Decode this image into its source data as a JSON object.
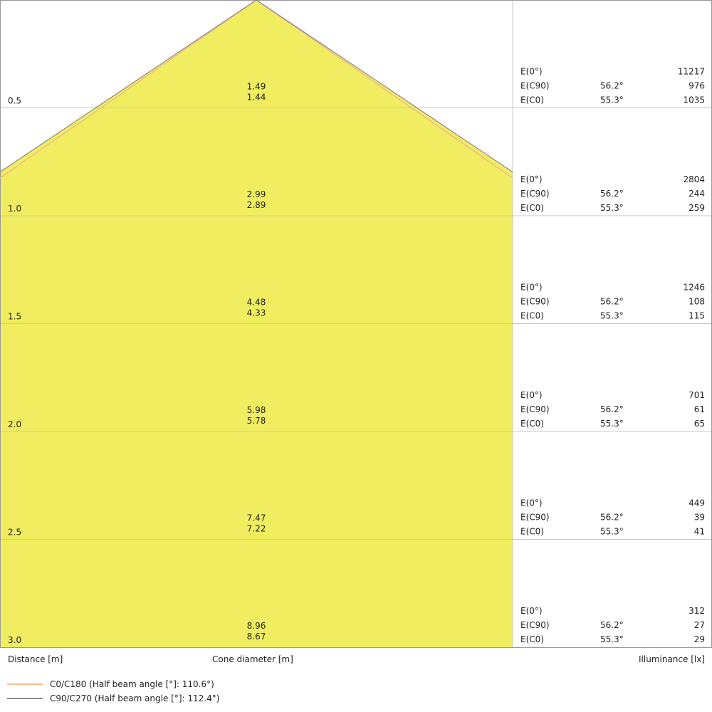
{
  "chart_data": {
    "type": "cone-diagram",
    "fill_color": "#f0ee60",
    "xlabel": "Cone diameter [m]",
    "ylabel": "Distance [m]",
    "right_label": "Illuminance [lx]",
    "series": [
      {
        "name": "C0/C180 (Half beam angle [°]: 110.6°)",
        "color": "#f5b98c",
        "half_beam_angle": 110.6
      },
      {
        "name": "C90/C270 (Half beam angle [°]: 112.4°)",
        "color": "#8a8a8a",
        "half_beam_angle": 112.4
      }
    ],
    "rows": [
      {
        "distance": "0.5",
        "d1": "1.49",
        "d2": "1.44",
        "e0_label": "E(0°)",
        "e0": "11217",
        "ec90_label": "E(C90)",
        "ec90_angle": "56.2°",
        "ec90": "976",
        "ec0_label": "E(C0)",
        "ec0_angle": "55.3°",
        "ec0": "1035"
      },
      {
        "distance": "1.0",
        "d1": "2.99",
        "d2": "2.89",
        "e0_label": "E(0°)",
        "e0": "2804",
        "ec90_label": "E(C90)",
        "ec90_angle": "56.2°",
        "ec90": "244",
        "ec0_label": "E(C0)",
        "ec0_angle": "55.3°",
        "ec0": "259"
      },
      {
        "distance": "1.5",
        "d1": "4.48",
        "d2": "4.33",
        "e0_label": "E(0°)",
        "e0": "1246",
        "ec90_label": "E(C90)",
        "ec90_angle": "56.2°",
        "ec90": "108",
        "ec0_label": "E(C0)",
        "ec0_angle": "55.3°",
        "ec0": "115"
      },
      {
        "distance": "2.0",
        "d1": "5.98",
        "d2": "5.78",
        "e0_label": "E(0°)",
        "e0": "701",
        "ec90_label": "E(C90)",
        "ec90_angle": "56.2°",
        "ec90": "61",
        "ec0_label": "E(C0)",
        "ec0_angle": "55.3°",
        "ec0": "65"
      },
      {
        "distance": "2.5",
        "d1": "7.47",
        "d2": "7.22",
        "e0_label": "E(0°)",
        "e0": "449",
        "ec90_label": "E(C90)",
        "ec90_angle": "56.2°",
        "ec90": "39",
        "ec0_label": "E(C0)",
        "ec0_angle": "55.3°",
        "ec0": "41"
      },
      {
        "distance": "3.0",
        "d1": "8.96",
        "d2": "8.67",
        "e0_label": "E(0°)",
        "e0": "312",
        "ec90_label": "E(C90)",
        "ec90_angle": "56.2°",
        "ec90": "27",
        "ec0_label": "E(C0)",
        "ec0_angle": "55.3°",
        "ec0": "29"
      }
    ]
  }
}
